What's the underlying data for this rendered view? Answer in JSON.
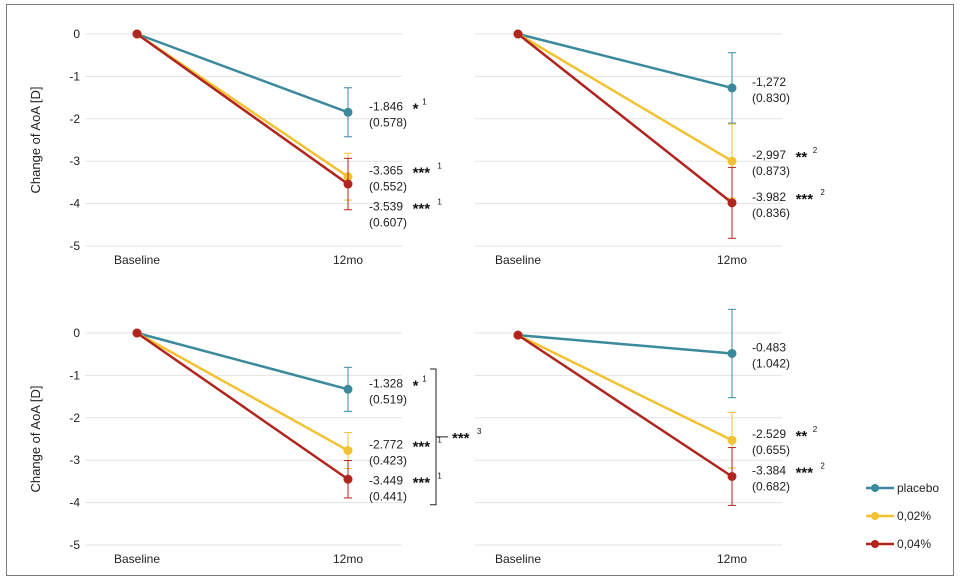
{
  "chart_data": [
    {
      "type": "line",
      "ylabel": "Change of AoA [D]",
      "categories": [
        "Baseline",
        "12mo"
      ],
      "yticks": [
        "0",
        "-1",
        "-2",
        "-3",
        "-4",
        "-5"
      ],
      "ylim": [
        -5,
        0
      ],
      "series": [
        {
          "name": "placebo",
          "values": [
            0,
            -1.846
          ],
          "error": [
            0,
            0.578
          ],
          "label": "-1.846",
          "sd": "(0.578)",
          "stars": "*",
          "sup": "1"
        },
        {
          "name": "0,02%",
          "values": [
            0,
            -3.365
          ],
          "error": [
            0,
            0.552
          ],
          "label": "-3.365",
          "sd": "(0.552)",
          "stars": "***",
          "sup": "1"
        },
        {
          "name": "0,04%",
          "values": [
            0,
            -3.539
          ],
          "error": [
            0,
            0.607
          ],
          "label": "-3.539",
          "sd": "(0.607)",
          "stars": "***",
          "sup": "1"
        }
      ]
    },
    {
      "type": "line",
      "ylabel": "",
      "categories": [
        "Baseline",
        "12mo"
      ],
      "yticks": [],
      "ylim": [
        -5,
        0
      ],
      "series": [
        {
          "name": "placebo",
          "values": [
            0,
            -1.272
          ],
          "error": [
            0,
            0.83
          ],
          "label": "-1,272",
          "sd": "(0.830)",
          "stars": "",
          "sup": ""
        },
        {
          "name": "0,02%",
          "values": [
            0,
            -2.997
          ],
          "error": [
            0,
            0.873
          ],
          "label": "-2,997",
          "sd": "(0.873)",
          "stars": "**",
          "sup": "2"
        },
        {
          "name": "0,04%",
          "values": [
            0,
            -3.982
          ],
          "error": [
            0,
            0.836
          ],
          "label": "-3.982",
          "sd": "(0.836)",
          "stars": "***",
          "sup": "2"
        }
      ]
    },
    {
      "type": "line",
      "ylabel": "Change of AoA [D]",
      "categories": [
        "Baseline",
        "12mo"
      ],
      "yticks": [
        "0",
        "-1",
        "-2",
        "-3",
        "-4",
        "-5"
      ],
      "ylim": [
        -5,
        0
      ],
      "bracket": {
        "stars": "***",
        "sup": "3"
      },
      "series": [
        {
          "name": "placebo",
          "values": [
            0,
            -1.328
          ],
          "error": [
            0,
            0.519
          ],
          "label": "-1.328",
          "sd": "(0.519)",
          "stars": "*",
          "sup": "1"
        },
        {
          "name": "0,02%",
          "values": [
            0,
            -2.772
          ],
          "error": [
            0,
            0.423
          ],
          "label": "-2.772",
          "sd": "(0.423)",
          "stars": "***",
          "sup": "1"
        },
        {
          "name": "0,04%",
          "values": [
            0,
            -3.449
          ],
          "error": [
            0,
            0.441
          ],
          "label": "-3.449",
          "sd": "(0.441)",
          "stars": "***",
          "sup": "1"
        }
      ]
    },
    {
      "type": "line",
      "ylabel": "",
      "categories": [
        "Baseline",
        "12mo"
      ],
      "yticks": [],
      "ylim": [
        -5,
        0
      ],
      "series": [
        {
          "name": "placebo",
          "values": [
            -0.05,
            -0.483
          ],
          "error": [
            0,
            1.042
          ],
          "label": "-0.483",
          "sd": "(1.042)",
          "stars": "",
          "sup": ""
        },
        {
          "name": "0,02%",
          "values": [
            -0.05,
            -2.529
          ],
          "error": [
            0,
            0.655
          ],
          "label": "-2.529",
          "sd": "(0.655)",
          "stars": "**",
          "sup": "2"
        },
        {
          "name": "0,04%",
          "values": [
            -0.05,
            -3.384
          ],
          "error": [
            0,
            0.682
          ],
          "label": "-3.384",
          "sd": "(0.682)",
          "stars": "***",
          "sup": "2"
        }
      ]
    }
  ],
  "legend": [
    {
      "label": "placebo"
    },
    {
      "label": "0,02%"
    },
    {
      "label": "0,04%"
    }
  ],
  "colors": {
    "placebo": "#3a8a9c",
    "0,02%": "#f2c232",
    "0,04%": "#b0261f",
    "grid": "#e3e3e3"
  }
}
